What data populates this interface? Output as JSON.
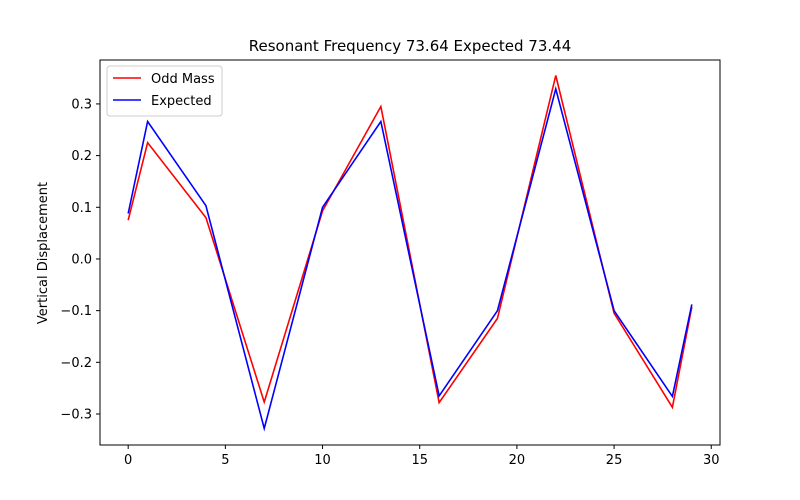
{
  "chart_data": {
    "type": "line",
    "title": "Resonant Frequency 73.64 Expected 73.44",
    "xlabel": "",
    "ylabel": "Vertical Displacement",
    "xlim": [
      -1.45,
      30.45
    ],
    "ylim": [
      -0.36,
      0.385
    ],
    "xticks": [
      0,
      5,
      10,
      15,
      20,
      25,
      30
    ],
    "yticks": [
      -0.3,
      -0.2,
      -0.1,
      0.0,
      0.1,
      0.2,
      0.3
    ],
    "ytick_labels": [
      "−0.3",
      "−0.2",
      "−0.1",
      "0.0",
      "0.1",
      "0.2",
      "0.3"
    ],
    "grid": false,
    "legend_position": "upper-left",
    "series": [
      {
        "name": "Odd Mass",
        "color": "#ff0000",
        "x": [
          0,
          1,
          4,
          7,
          10,
          13,
          16,
          19,
          22,
          25,
          28,
          29
        ],
        "y": [
          0.075,
          0.225,
          0.08,
          -0.277,
          0.093,
          0.295,
          -0.278,
          -0.115,
          0.355,
          -0.105,
          -0.287,
          -0.093
        ]
      },
      {
        "name": "Expected",
        "color": "#0000ff",
        "x": [
          0,
          1,
          4,
          7,
          10,
          13,
          16,
          19,
          22,
          25,
          28,
          29
        ],
        "y": [
          0.088,
          0.266,
          0.103,
          -0.328,
          0.1,
          0.266,
          -0.265,
          -0.1,
          0.329,
          -0.1,
          -0.266,
          -0.088
        ]
      }
    ]
  }
}
